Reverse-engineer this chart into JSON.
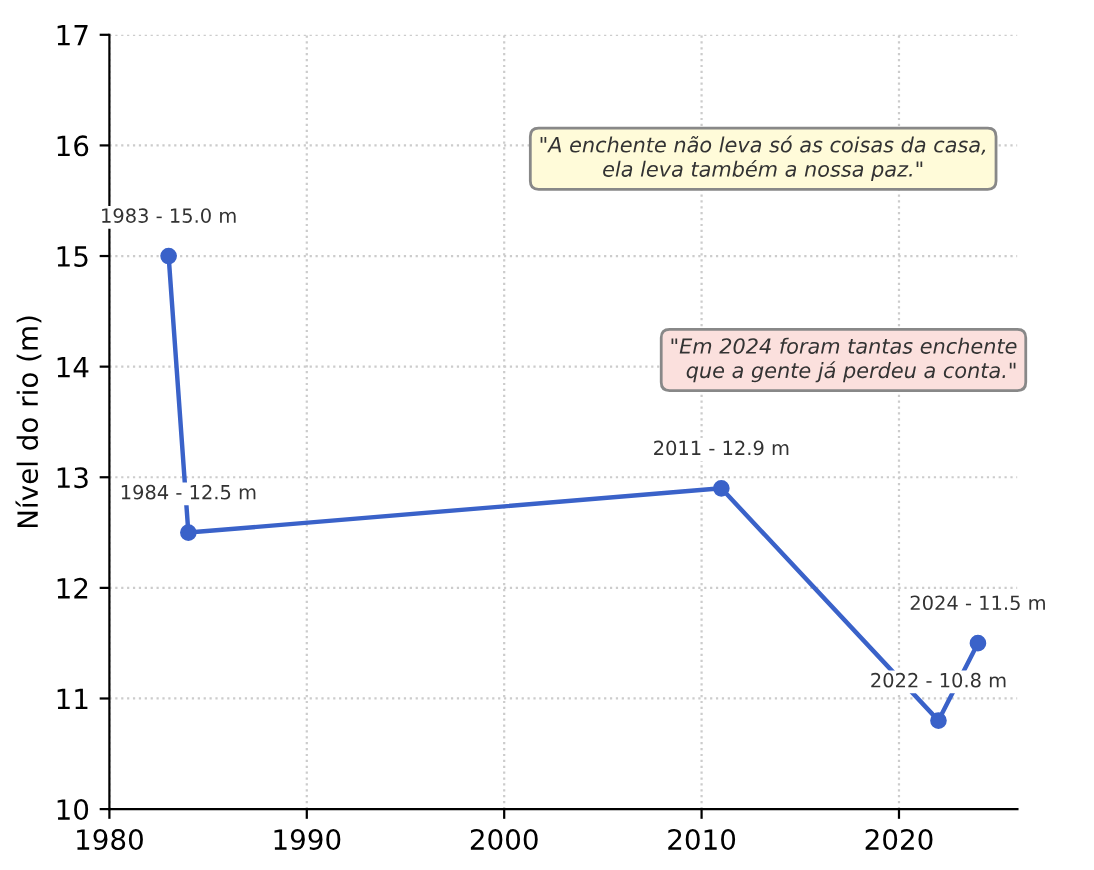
{
  "chart_data": {
    "type": "line",
    "ylabel": "Nível do rio (m)",
    "x": [
      1983,
      1984,
      2011,
      2022,
      2024
    ],
    "series": [
      {
        "color": "#3a62c9",
        "values": [
          15.0,
          12.5,
          12.9,
          10.8,
          11.5
        ]
      }
    ],
    "xlim": [
      1980,
      2026
    ],
    "ylim": [
      10,
      17
    ],
    "xticks": [
      1980,
      1990,
      2000,
      2010,
      2020
    ],
    "yticks": [
      10,
      11,
      12,
      13,
      14,
      15,
      16,
      17
    ],
    "grid": true,
    "marker": "circle",
    "line_style": "solid",
    "legend": false,
    "annotations": [
      {
        "text": "1983 - 15.0 m",
        "x": 1983,
        "y": 15.0
      },
      {
        "text": "1984 - 12.5 m",
        "x": 1984,
        "y": 12.5
      },
      {
        "text": "2011 - 12.9 m",
        "x": 2011,
        "y": 12.9
      },
      {
        "text": "2022 - 10.8 m",
        "x": 2022,
        "y": 10.8
      },
      {
        "text": "2024 - 11.5 m",
        "x": 2024,
        "y": 11.5
      },
      "\"A enchente não leva só as coisas da casa,\nela leva também a nossa paz.\"",
      "\"Em 2024 foram tantas enchente\nque a gente já perdeu a conta.\""
    ]
  }
}
